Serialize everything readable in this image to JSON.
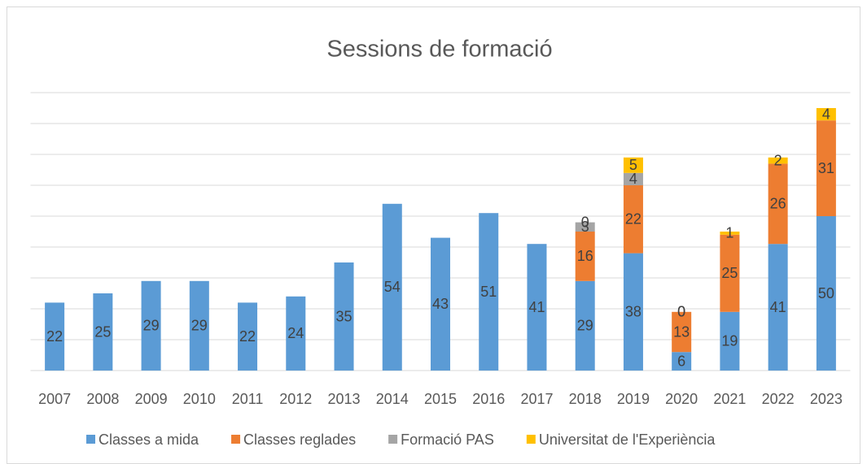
{
  "chart_data": {
    "type": "stacked_bar",
    "title": "Sessions de formació",
    "categories": [
      "2007",
      "2008",
      "2009",
      "2010",
      "2011",
      "2012",
      "2013",
      "2014",
      "2015",
      "2016",
      "2017",
      "2018",
      "2019",
      "2020",
      "2021",
      "2022",
      "2023"
    ],
    "series": [
      {
        "name": "Classes a mida",
        "color": "#5b9bd5",
        "values": [
          22,
          25,
          29,
          29,
          22,
          24,
          35,
          54,
          43,
          51,
          41,
          29,
          38,
          6,
          19,
          41,
          50
        ]
      },
      {
        "name": "Classes reglades",
        "color": "#ed7d31",
        "values": [
          null,
          null,
          null,
          null,
          null,
          null,
          null,
          null,
          null,
          null,
          null,
          16,
          22,
          13,
          25,
          26,
          31
        ]
      },
      {
        "name": "Formació PAS",
        "color": "#a5a5a5",
        "values": [
          null,
          null,
          null,
          null,
          null,
          null,
          null,
          null,
          null,
          null,
          null,
          3,
          4,
          0,
          null,
          null,
          null
        ]
      },
      {
        "name": "Universitat de l'Experiència",
        "color": "#ffc000",
        "values": [
          null,
          null,
          null,
          null,
          null,
          null,
          null,
          null,
          null,
          null,
          null,
          0,
          5,
          0,
          1,
          2,
          4
        ]
      }
    ],
    "ylim": [
      0,
      90
    ],
    "yticks": [
      0,
      10,
      20,
      30,
      40,
      50,
      60,
      70,
      80,
      90
    ],
    "grid": true,
    "legend": "bottom"
  }
}
